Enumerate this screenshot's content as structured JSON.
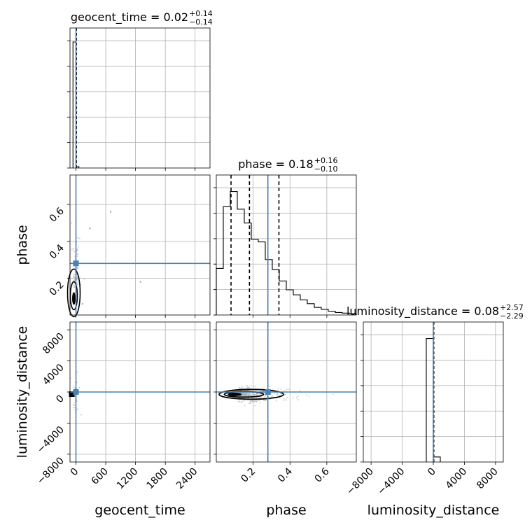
{
  "chart_data": {
    "type": "corner",
    "colors": {
      "truth": "#4682b4",
      "hist": "#000000",
      "grid": "#b0b0b0",
      "scatter": "#a9a9a9"
    },
    "parameters": [
      {
        "name": "geocent_time",
        "xlabel": "geocent_time",
        "ylabel": "",
        "title_prefix": "geocent_time = ",
        "median": "0.02",
        "plus": "+0.14",
        "minus": "−0.14",
        "truth": 0,
        "range": [
          -120,
          2700
        ],
        "ticks": [
          0,
          600,
          1200,
          1800,
          2400
        ],
        "tick_labels": [
          "0",
          "600",
          "1200",
          "1800",
          "2400"
        ],
        "hist_edges": [
          -60,
          0,
          60
        ],
        "hist_counts": [
          1.0,
          0.01
        ],
        "hist_max": 1.0,
        "quantile_lines": [],
        "label_rotation": -45
      },
      {
        "name": "phase",
        "xlabel": "phase",
        "ylabel": "phase",
        "title_prefix": "phase = ",
        "median": "0.18",
        "plus": "+0.16",
        "minus": "−0.10",
        "truth": 0.28,
        "range": [
          0.0,
          0.76
        ],
        "ticks": [
          0.2,
          0.4,
          0.6
        ],
        "tick_labels": [
          "0.2",
          "0.4",
          "0.6"
        ],
        "hist_edges": [
          0.0,
          0.038,
          0.076,
          0.114,
          0.152,
          0.19,
          0.228,
          0.266,
          0.304,
          0.342,
          0.38,
          0.418,
          0.456,
          0.494,
          0.532,
          0.57,
          0.608,
          0.646,
          0.684,
          0.722,
          0.76
        ],
        "hist_counts": [
          0.37,
          0.86,
          0.98,
          0.84,
          0.73,
          0.6,
          0.58,
          0.44,
          0.36,
          0.27,
          0.2,
          0.16,
          0.12,
          0.09,
          0.06,
          0.045,
          0.03,
          0.02,
          0.015,
          0.01
        ],
        "hist_max": 1.0,
        "quantile_lines": [
          0.08,
          0.18,
          0.34
        ],
        "label_rotation": -45
      },
      {
        "name": "luminosity_distance",
        "xlabel": "luminosity_distance",
        "ylabel": "luminosity_distance",
        "title_prefix": "luminosity_distance = ",
        "median": "0.08",
        "plus": "+2.57",
        "minus": "−2.29",
        "truth": 0,
        "range": [
          -9000,
          9000
        ],
        "ticks": [
          -8000,
          -4000,
          0,
          4000,
          8000
        ],
        "tick_labels": [
          "−8000",
          "−4000",
          "0",
          "4000",
          "8000"
        ],
        "hist_edges": [
          -900,
          0,
          900
        ],
        "hist_counts": [
          0.98,
          0.04
        ],
        "hist_max": 1.0,
        "quantile_lines": [],
        "label_rotation": -45
      }
    ],
    "y_axis_ticks": {
      "phase": {
        "ticks": [
          0.2,
          0.4,
          0.6
        ],
        "tick_labels": [
          "0.2",
          "0.4",
          "0.6"
        ],
        "rotation": -45
      },
      "luminosity_distance": {
        "ticks": [
          -8000,
          -4000,
          0,
          4000,
          8000
        ],
        "tick_labels": [
          "−8000",
          "−4000",
          "0",
          "4000",
          "8000"
        ],
        "rotation": -45
      }
    },
    "grid": true,
    "scatter_phase_vs_ld": {
      "center": [
        0.18,
        -300
      ],
      "spread": [
        0.12,
        500
      ]
    },
    "scatter_gt_vs_phase_outliers": [
      {
        "x": 700,
        "y": 0.56
      },
      {
        "x": 280,
        "y": 0.47
      },
      {
        "x": 1300,
        "y": 0.18
      },
      {
        "x": 130,
        "y": 0.06
      }
    ]
  }
}
